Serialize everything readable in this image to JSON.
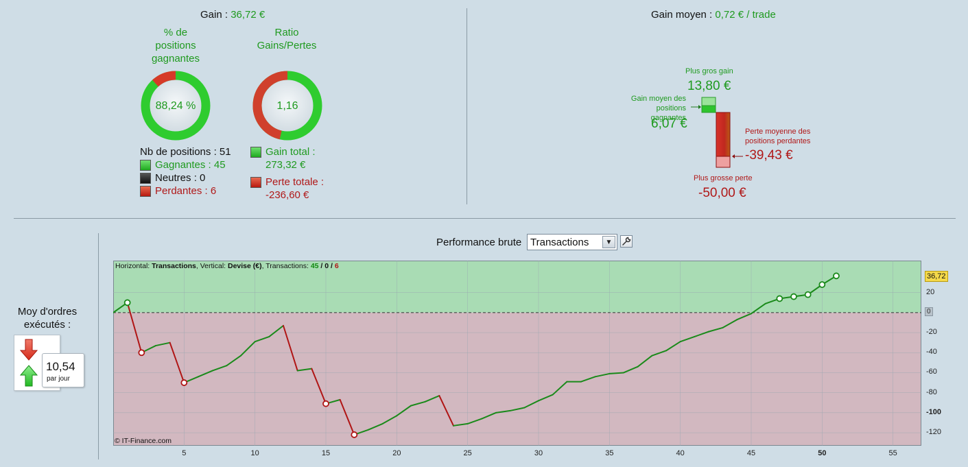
{
  "gain": {
    "label": "Gain :",
    "value": "36,72 €"
  },
  "donut_positions": {
    "title_lines": [
      "% de",
      "positions",
      "gagnantes"
    ],
    "value": "88,24 %",
    "win_fraction": 0.8824
  },
  "donut_ratio": {
    "title_lines": [
      "Ratio",
      "Gains/Pertes"
    ],
    "value": "1,16",
    "gain_fraction": 0.536
  },
  "positions": {
    "total_label": "Nb de positions : 51",
    "winners_label": "Gagnantes : 45",
    "neutral_label": "Neutres : 0",
    "losers_label": "Perdantes : 6"
  },
  "totals": {
    "gain_total_label": "Gain total :",
    "gain_total_value": "273,32 €",
    "perte_totale_label": "Perte totale :",
    "perte_totale_value": "-236,60 €"
  },
  "gain_moyen": {
    "label": "Gain moyen :",
    "value": "0,72 € / trade"
  },
  "extremes": {
    "plus_gros_gain_label": "Plus gros gain",
    "plus_gros_gain_value": "13,80 €",
    "gain_moyen_pos_label_1": "Gain moyen des positions",
    "gain_moyen_pos_label_2": "gagnantes",
    "gain_moyen_pos_value": "6,07 €",
    "perte_moyenne_label_1": "Perte moyenne des",
    "perte_moyenne_label_2": "positions perdantes",
    "perte_moyenne_value": "-39,43 €",
    "plus_grosse_perte_label": "Plus grosse perte",
    "plus_grosse_perte_value": "-50,00 €"
  },
  "performance": {
    "title": "Performance brute",
    "select_value": "Transactions",
    "info_prefix": "Horizontal: ",
    "info_h": "Transactions",
    "info_mid": ", Vertical: ",
    "info_v": "Devise (€)",
    "info_tr": ", Transactions: ",
    "info_win": "45",
    "info_sep1": " / ",
    "info_neutral": "0",
    "info_sep2": " / ",
    "info_loss": "6",
    "copyright": "© IT-Finance.com",
    "last_value_label": "36,72",
    "zero_label": "0"
  },
  "moy_ordres": {
    "label_lines": [
      "Moy d'ordres",
      "exécutés :"
    ],
    "value": "10,54",
    "unit": "par jour"
  },
  "chart_data": {
    "type": "line",
    "xlabel": "Transactions",
    "ylabel": "Devise (€)",
    "xlim": [
      0,
      57
    ],
    "ylim": [
      -133,
      52
    ],
    "x_ticks": [
      5,
      10,
      15,
      20,
      25,
      30,
      35,
      40,
      45,
      50,
      55
    ],
    "y_ticks": [
      20,
      0,
      -20,
      -40,
      -60,
      -80,
      -100,
      -120
    ],
    "x": [
      0,
      1,
      2,
      3,
      4,
      5,
      6,
      7,
      8,
      9,
      10,
      11,
      12,
      13,
      14,
      15,
      16,
      17,
      18,
      19,
      20,
      21,
      22,
      23,
      24,
      25,
      26,
      27,
      28,
      29,
      30,
      31,
      32,
      33,
      34,
      35,
      36,
      37,
      38,
      39,
      40,
      41,
      42,
      43,
      44,
      45,
      46,
      47,
      48,
      49,
      50,
      51
    ],
    "values": [
      0,
      10,
      -40,
      -33,
      -30,
      -70,
      -64,
      -58,
      -53,
      -43,
      -29,
      -24,
      -13,
      -58,
      -56,
      -91,
      -87,
      -122,
      -117,
      -111,
      -103,
      -93,
      -89,
      -83,
      -113,
      -111,
      -106,
      -100,
      -98,
      -95,
      -88,
      -82,
      -69,
      -69,
      -64,
      -61,
      -60,
      -54,
      -43,
      -38,
      -29,
      -24,
      -19,
      -15,
      -7,
      -1,
      9,
      14,
      16,
      18,
      28,
      36.72
    ],
    "loss_points": [
      2,
      5,
      15,
      17
    ],
    "win_points": [
      1,
      47,
      48,
      49,
      50,
      51
    ]
  }
}
